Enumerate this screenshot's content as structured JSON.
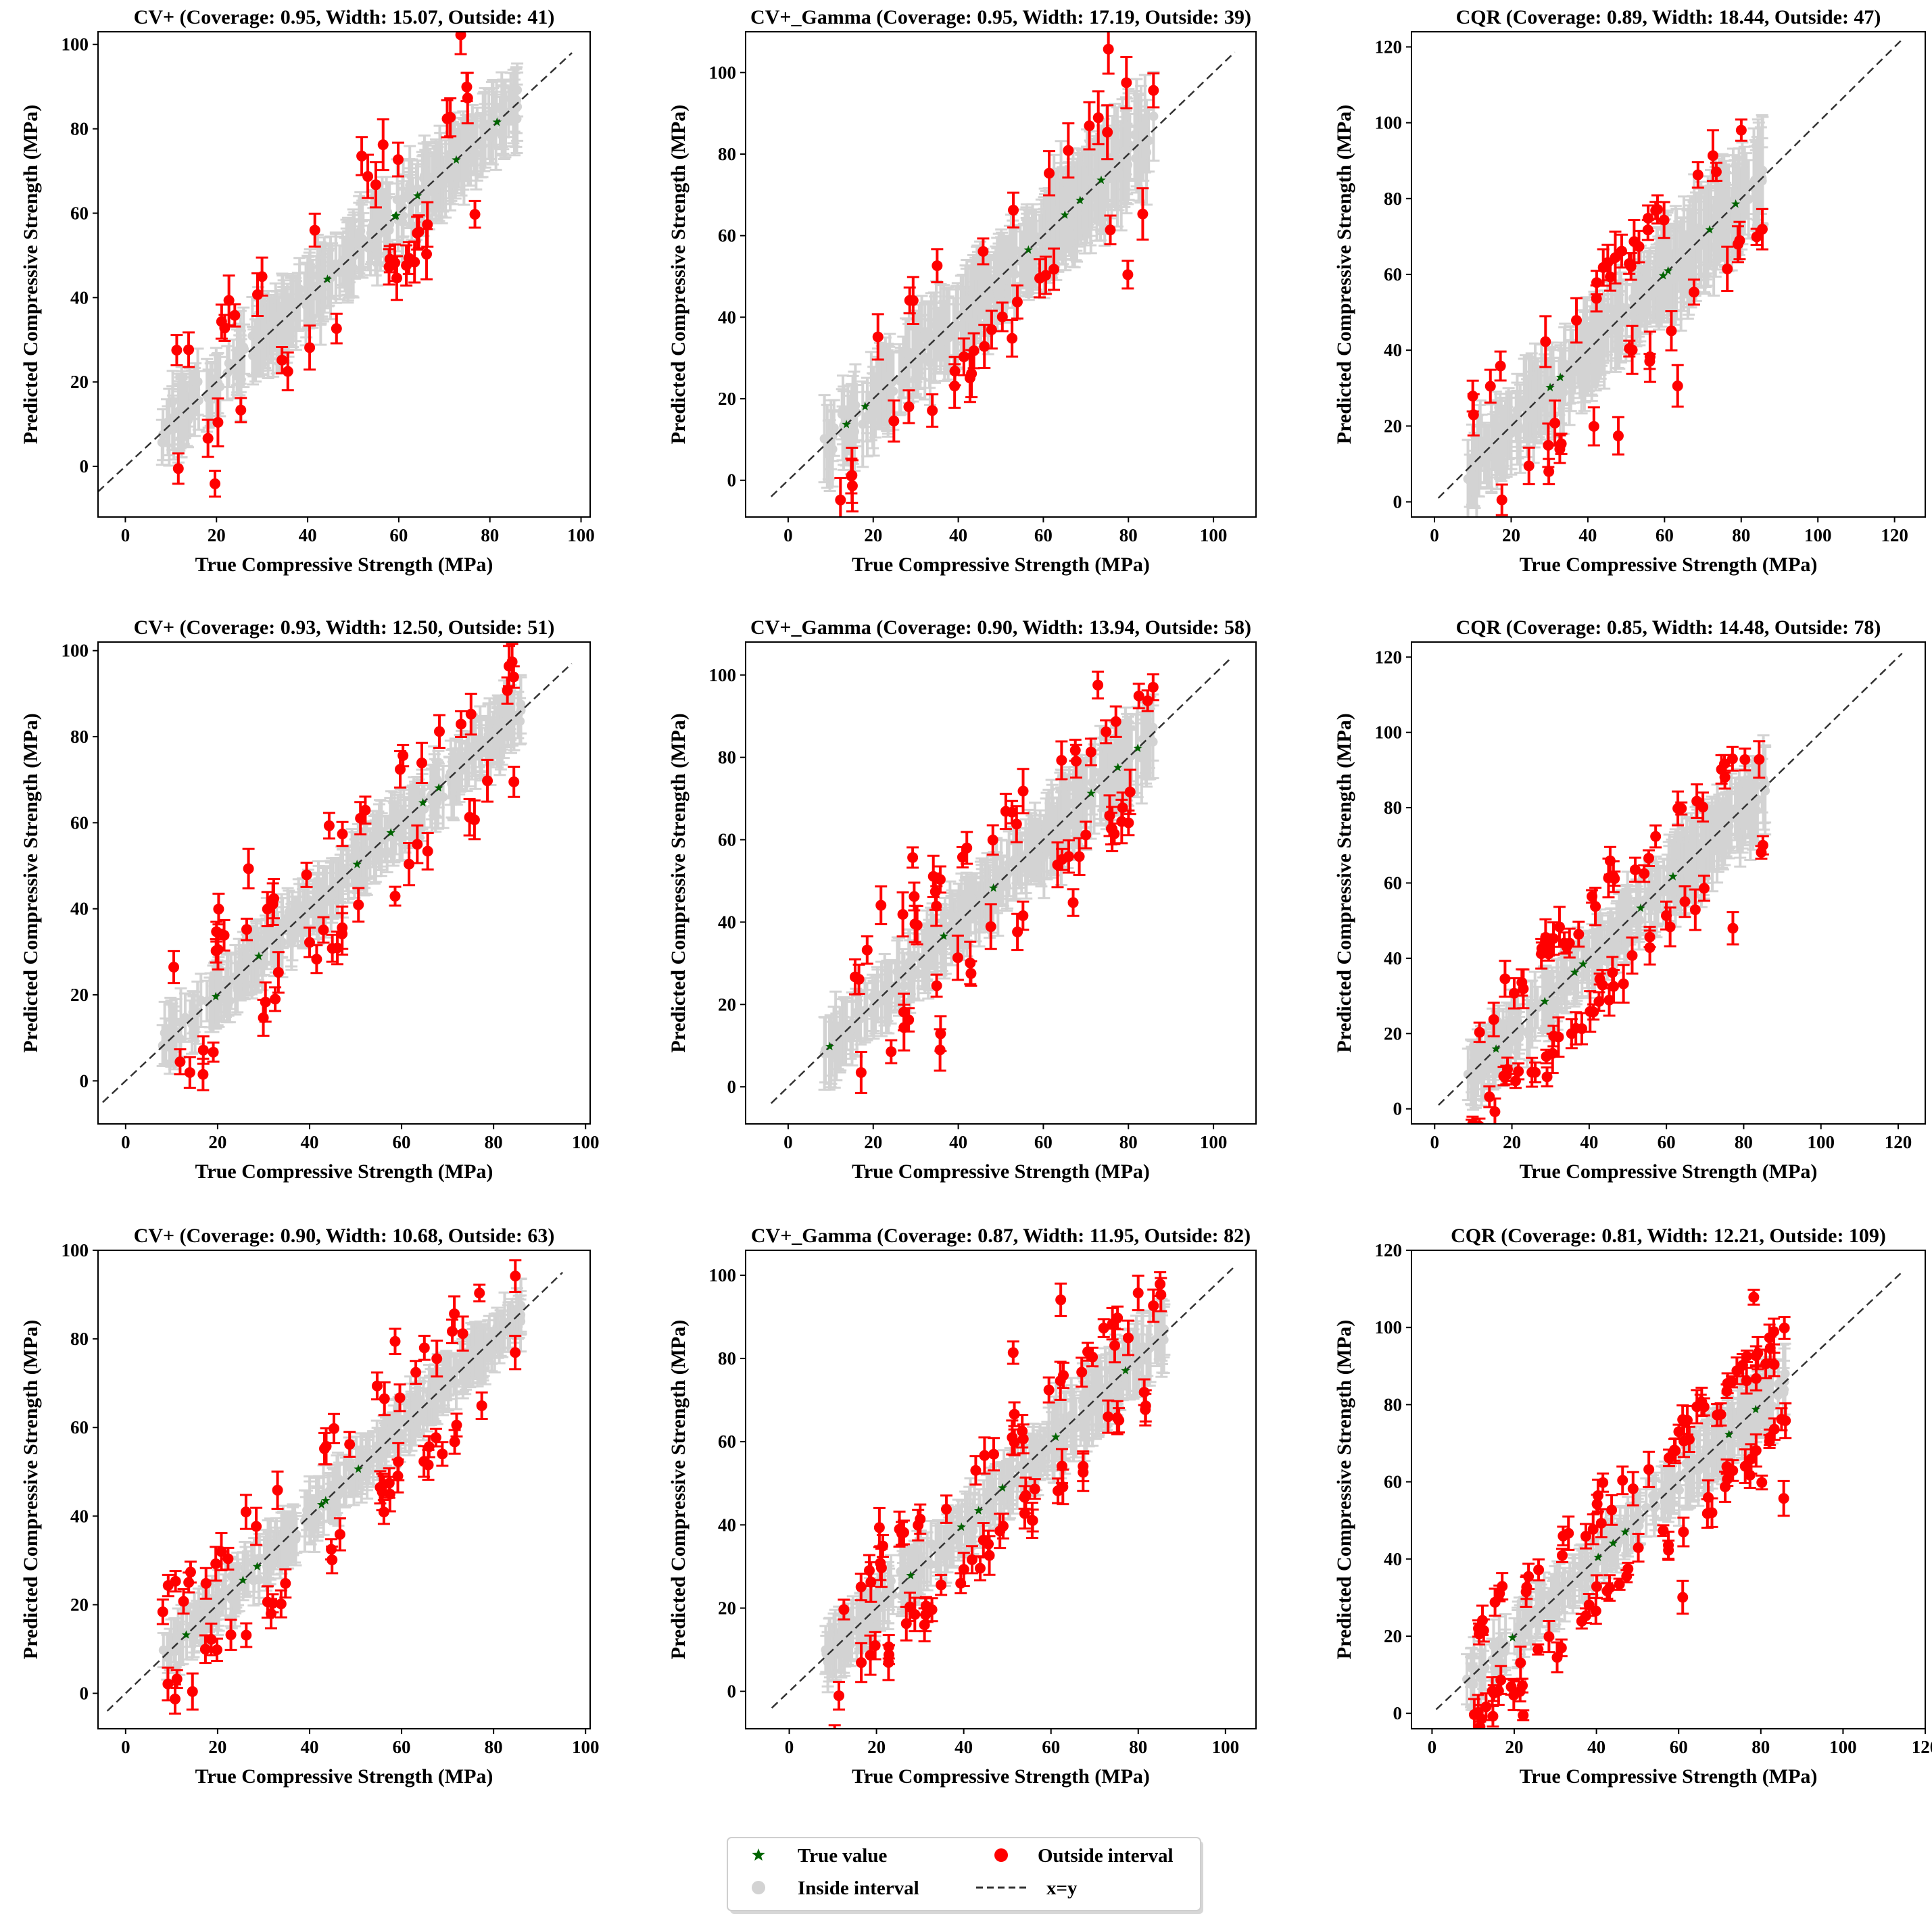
{
  "legend": {
    "items": [
      {
        "key": "true_value",
        "label": "True value",
        "color": "#006400",
        "marker": "star"
      },
      {
        "key": "outside",
        "label": "Outside interval",
        "color": "#ff0000",
        "marker": "circle"
      },
      {
        "key": "inside",
        "label": "Inside interval",
        "color": "#d3d3d3",
        "marker": "circle"
      },
      {
        "key": "diag",
        "label": "x=y",
        "color": "#333333",
        "marker": "dashed-line"
      }
    ]
  },
  "colors": {
    "inside": "#d3d3d3",
    "outside": "#ff0000",
    "true_value": "#006400",
    "diagonal": "#333333"
  },
  "chart_data": [
    {
      "type": "scatter",
      "title": "CV+ (Coverage: 0.95, Width: 15.07, Outside: 41)",
      "method": "CV+",
      "coverage": 0.95,
      "width": 15.07,
      "outside": 41,
      "xlabel": "True Compressive Strength (MPa)",
      "ylabel": "Predicted Compressive Strength (MPa)",
      "xlim": [
        -6,
        102
      ],
      "ylim": [
        -12,
        103
      ],
      "xticks": [
        0,
        20,
        40,
        60,
        80,
        100
      ],
      "yticks": [
        0,
        20,
        40,
        60,
        80,
        100
      ],
      "diag": [
        -6,
        98
      ],
      "seed": 11
    },
    {
      "type": "scatter",
      "title": "CV+_Gamma (Coverage: 0.95, Width: 17.19, Outside: 39)",
      "method": "CV+_Gamma",
      "coverage": 0.95,
      "width": 17.19,
      "outside": 39,
      "xlabel": "True Compressive Strength (MPa)",
      "ylabel": "Predicted Compressive Strength (MPa)",
      "xlim": [
        -10,
        110
      ],
      "ylim": [
        -9,
        110
      ],
      "xticks": [
        0,
        20,
        40,
        60,
        80,
        100
      ],
      "yticks": [
        0,
        20,
        40,
        60,
        80,
        100
      ],
      "diag": [
        -4,
        105
      ],
      "seed": 23
    },
    {
      "type": "scatter",
      "title": "CQR (Coverage: 0.89, Width: 18.44, Outside: 47)",
      "method": "CQR",
      "coverage": 0.89,
      "width": 18.44,
      "outside": 47,
      "xlabel": "True Compressive Strength (MPa)",
      "ylabel": "Predicted Compressive Strength (MPa)",
      "xlim": [
        -6,
        128
      ],
      "ylim": [
        -4,
        124
      ],
      "xticks": [
        0,
        20,
        40,
        60,
        80,
        100,
        120
      ],
      "yticks": [
        0,
        20,
        40,
        60,
        80,
        100,
        120
      ],
      "diag": [
        1,
        122
      ],
      "seed": 37
    },
    {
      "type": "scatter",
      "title": "CV+ (Coverage: 0.93, Width: 12.50, Outside: 51)",
      "method": "CV+",
      "coverage": 0.93,
      "width": 12.5,
      "outside": 51,
      "xlabel": "True Compressive Strength (MPa)",
      "ylabel": "Predicted Compressive Strength (MPa)",
      "xlim": [
        -6,
        101
      ],
      "ylim": [
        -10,
        102
      ],
      "xticks": [
        0,
        20,
        40,
        60,
        80,
        100
      ],
      "yticks": [
        0,
        20,
        40,
        60,
        80,
        100
      ],
      "diag": [
        -5,
        97
      ],
      "seed": 41
    },
    {
      "type": "scatter",
      "title": "CV+_Gamma (Coverage: 0.90, Width: 13.94, Outside: 58)",
      "method": "CV+_Gamma",
      "coverage": 0.9,
      "width": 13.94,
      "outside": 58,
      "xlabel": "True Compressive Strength (MPa)",
      "ylabel": "Predicted Compressive Strength (MPa)",
      "xlim": [
        -10,
        110
      ],
      "ylim": [
        -9,
        108
      ],
      "xticks": [
        0,
        20,
        40,
        60,
        80,
        100
      ],
      "yticks": [
        0,
        20,
        40,
        60,
        80,
        100
      ],
      "diag": [
        -4,
        104
      ],
      "seed": 53
    },
    {
      "type": "scatter",
      "title": "CQR (Coverage: 0.85, Width: 14.48, Outside: 78)",
      "method": "CQR",
      "coverage": 0.85,
      "width": 14.48,
      "outside": 78,
      "xlabel": "True Compressive Strength (MPa)",
      "ylabel": "Predicted Compressive Strength (MPa)",
      "xlim": [
        -6,
        127
      ],
      "ylim": [
        -4,
        124
      ],
      "xticks": [
        0,
        20,
        40,
        60,
        80,
        100,
        120
      ],
      "yticks": [
        0,
        20,
        40,
        60,
        80,
        100,
        120
      ],
      "diag": [
        1,
        121
      ],
      "seed": 67
    },
    {
      "type": "scatter",
      "title": "CV+ (Coverage: 0.90, Width: 10.68, Outside: 63)",
      "method": "CV+",
      "coverage": 0.9,
      "width": 10.68,
      "outside": 63,
      "xlabel": "True Compressive Strength (MPa)",
      "ylabel": "Predicted Compressive Strength (MPa)",
      "xlim": [
        -6,
        101
      ],
      "ylim": [
        -8,
        100
      ],
      "xticks": [
        0,
        20,
        40,
        60,
        80,
        100
      ],
      "yticks": [
        0,
        20,
        40,
        60,
        80,
        100
      ],
      "diag": [
        -4,
        95
      ],
      "seed": 71
    },
    {
      "type": "scatter",
      "title": "CV+_Gamma (Coverage: 0.87, Width: 11.95, Outside: 82)",
      "method": "CV+_Gamma",
      "coverage": 0.87,
      "width": 11.95,
      "outside": 82,
      "xlabel": "True Compressive Strength (MPa)",
      "ylabel": "Predicted Compressive Strength (MPa)",
      "xlim": [
        -10,
        107
      ],
      "ylim": [
        -9,
        106
      ],
      "xticks": [
        0,
        20,
        40,
        60,
        80,
        100
      ],
      "yticks": [
        0,
        20,
        40,
        60,
        80,
        100
      ],
      "diag": [
        -4,
        102
      ],
      "seed": 83
    },
    {
      "type": "scatter",
      "title": "CQR (Coverage: 0.81, Width: 12.21, Outside: 109)",
      "method": "CQR",
      "coverage": 0.81,
      "width": 12.21,
      "outside": 109,
      "xlabel": "True Compressive Strength (MPa)",
      "ylabel": "Predicted Compressive Strength (MPa)",
      "xlim": [
        -5,
        120
      ],
      "ylim": [
        -4,
        120
      ],
      "xticks": [
        0,
        20,
        40,
        60,
        80,
        100,
        120
      ],
      "yticks": [
        0,
        20,
        40,
        60,
        80,
        100,
        120
      ],
      "diag": [
        1,
        114
      ],
      "seed": 97
    }
  ]
}
